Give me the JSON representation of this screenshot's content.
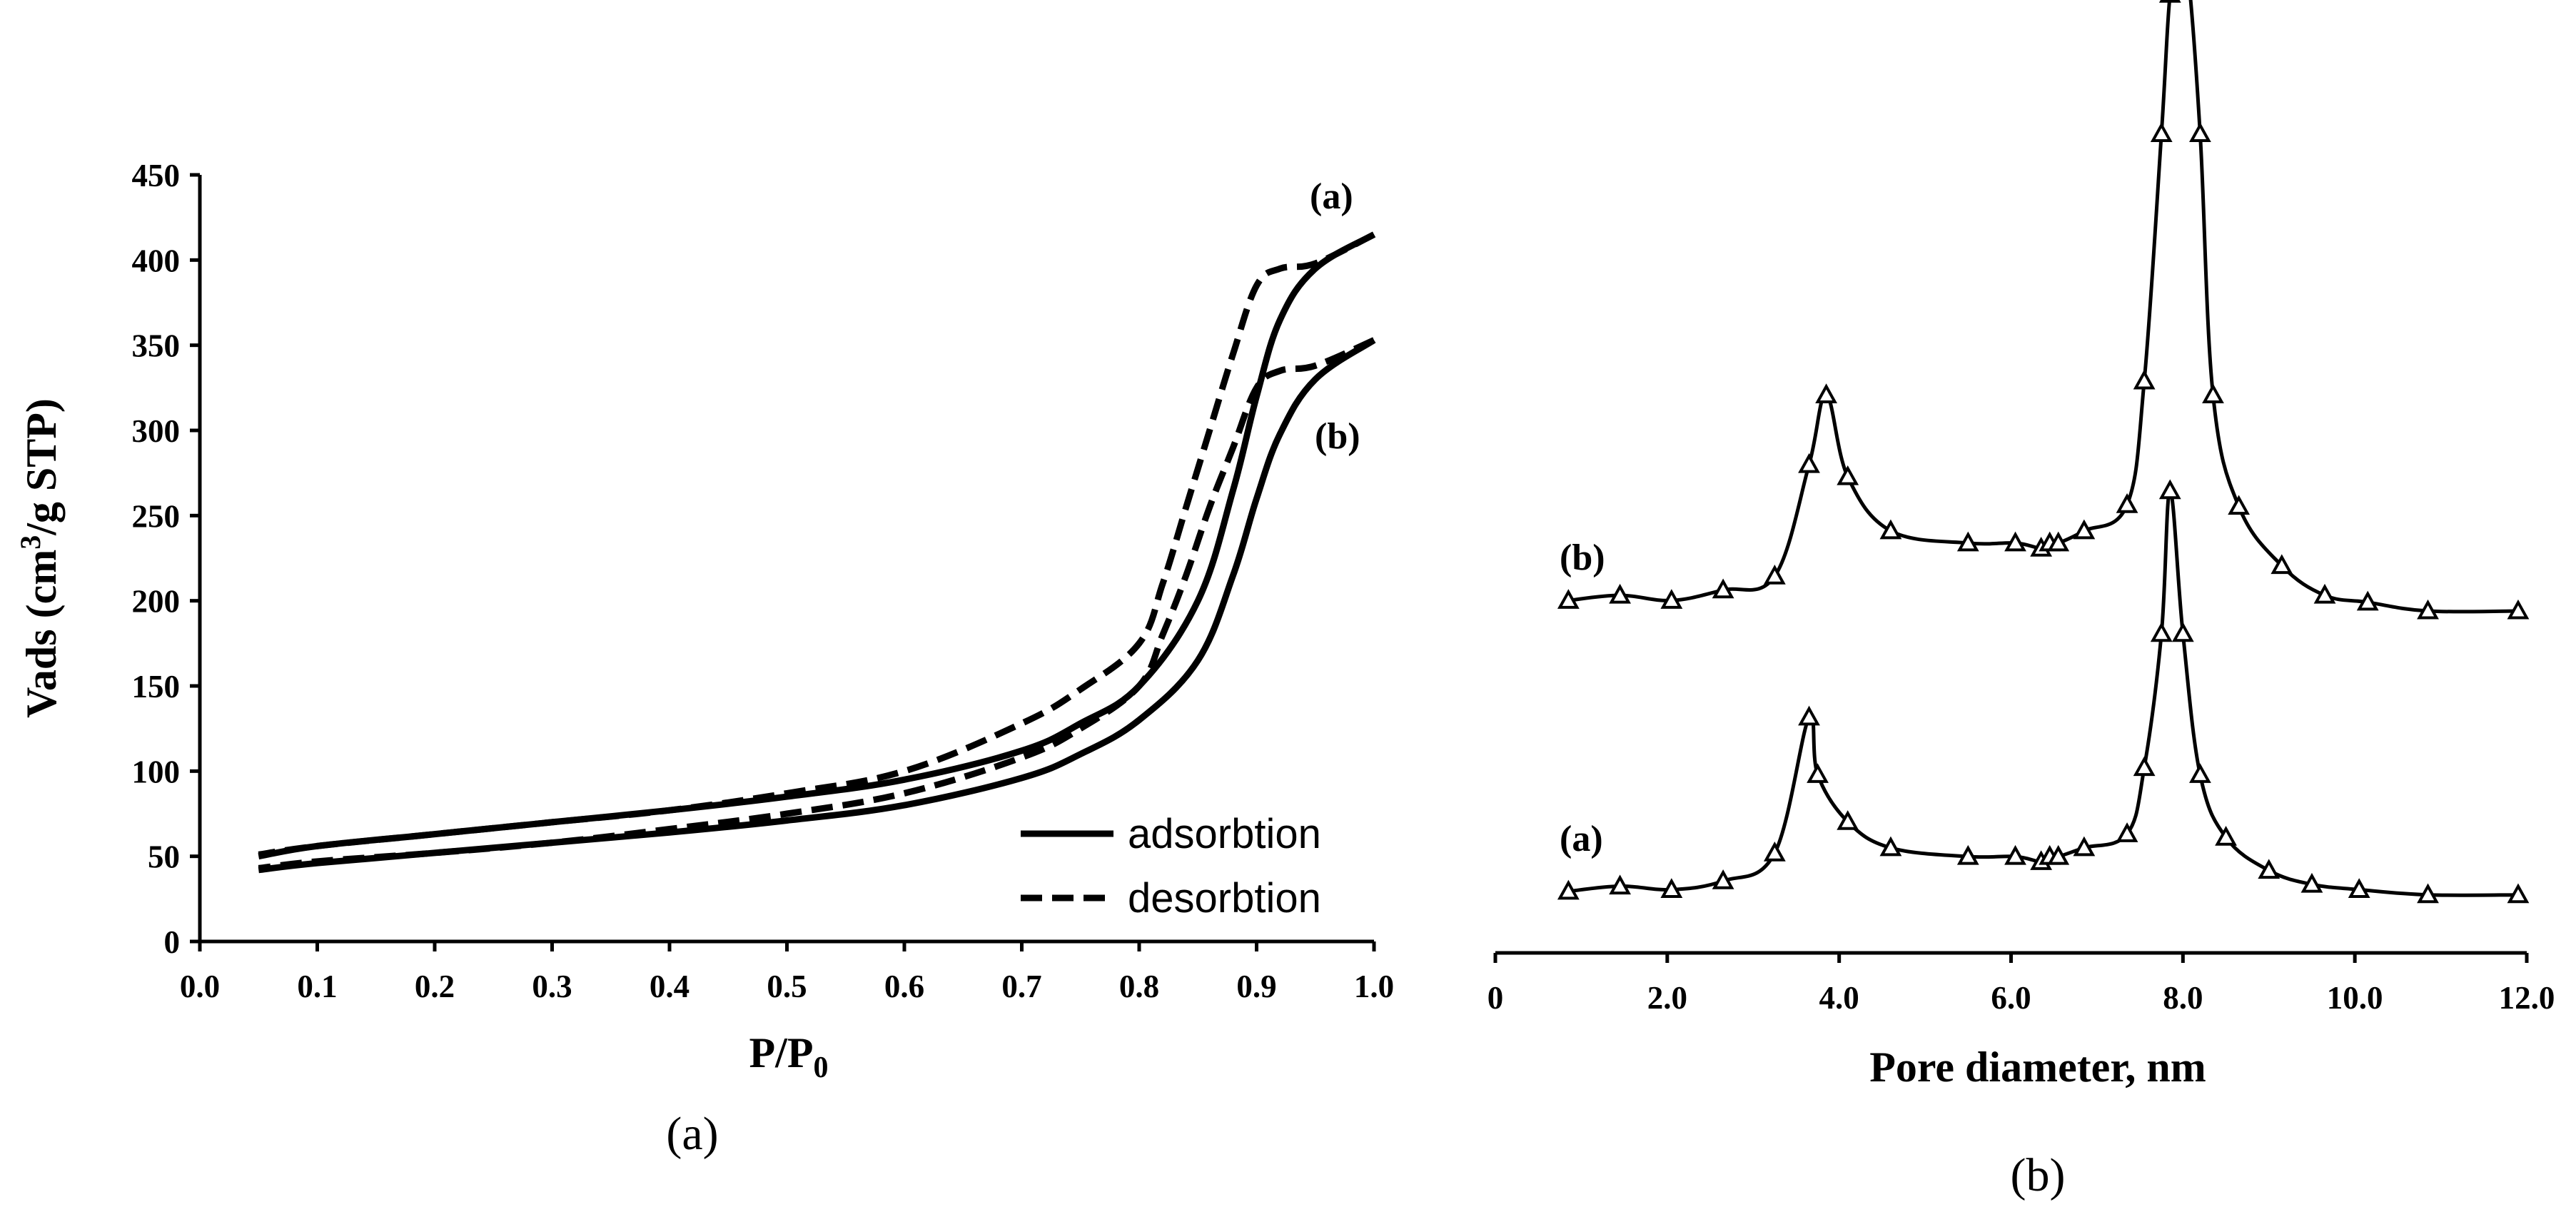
{
  "chart_data": [
    {
      "type": "line",
      "panel_caption": "(a)",
      "xlabel": "P/P",
      "xlabel_sub": "0",
      "ylabel": "Vads (cm",
      "ylabel_sup": "3",
      "ylabel_tail": "/g STP)",
      "xlim": [
        0.0,
        1.0
      ],
      "ylim": [
        0,
        450
      ],
      "xticks": [
        "0.0",
        "0.1",
        "0.2",
        "0.3",
        "0.4",
        "0.5",
        "0.6",
        "0.7",
        "0.8",
        "0.9",
        "1.0"
      ],
      "yticks": [
        "0",
        "50",
        "100",
        "150",
        "200",
        "250",
        "300",
        "350",
        "400",
        "450"
      ],
      "legend": [
        {
          "name": "adsorbtion",
          "style": "solid"
        },
        {
          "name": "desorbtion",
          "style": "dashed"
        }
      ],
      "sample_labels": [
        "(a)",
        "(b)"
      ],
      "series": [
        {
          "name": "(a) adsorbtion",
          "style": "solid",
          "x": [
            0.05,
            0.1,
            0.2,
            0.3,
            0.4,
            0.5,
            0.6,
            0.7,
            0.75,
            0.8,
            0.85,
            0.88,
            0.9,
            0.92,
            0.95,
            1.0
          ],
          "y": [
            50,
            56,
            63,
            70,
            77,
            85,
            95,
            112,
            128,
            150,
            200,
            265,
            320,
            365,
            395,
            415
          ]
        },
        {
          "name": "(a) desorbtion",
          "style": "dashed",
          "x": [
            1.0,
            0.95,
            0.92,
            0.9,
            0.88,
            0.86,
            0.84,
            0.82,
            0.8,
            0.75,
            0.7,
            0.6,
            0.5,
            0.4,
            0.3,
            0.2,
            0.1,
            0.05
          ],
          "y": [
            415,
            398,
            395,
            385,
            345,
            300,
            255,
            210,
            175,
            148,
            128,
            100,
            87,
            77,
            70,
            63,
            56,
            51
          ]
        },
        {
          "name": "(b) adsorbtion",
          "style": "solid",
          "x": [
            0.05,
            0.1,
            0.2,
            0.3,
            0.4,
            0.5,
            0.6,
            0.7,
            0.75,
            0.8,
            0.85,
            0.88,
            0.9,
            0.92,
            0.95,
            1.0
          ],
          "y": [
            42,
            46,
            52,
            58,
            64,
            71,
            80,
            96,
            110,
            130,
            165,
            215,
            260,
            298,
            330,
            353
          ]
        },
        {
          "name": "(b) desorbtion",
          "style": "dashed",
          "x": [
            1.0,
            0.95,
            0.92,
            0.9,
            0.88,
            0.86,
            0.84,
            0.82,
            0.8,
            0.75,
            0.7,
            0.6,
            0.5,
            0.4,
            0.3,
            0.2,
            0.1,
            0.05
          ],
          "y": [
            353,
            338,
            335,
            325,
            290,
            255,
            215,
            180,
            150,
            125,
            108,
            87,
            75,
            66,
            58,
            52,
            47,
            43
          ]
        }
      ]
    },
    {
      "type": "line",
      "panel_caption": "(b)",
      "xlabel": "Pore diameter, nm",
      "xlim": [
        0,
        12
      ],
      "xticks": [
        "0",
        "2.0",
        "4.0",
        "6.0",
        "8.0",
        "10.0",
        "12.0"
      ],
      "y_axis_shown": false,
      "sample_labels": [
        "(b)",
        "(a)"
      ],
      "series": [
        {
          "name": "(a)",
          "marker": "triangle",
          "x": [
            0.85,
            1.45,
            2.05,
            2.65,
            3.25,
            3.65,
            3.75,
            4.1,
            4.6,
            5.5,
            6.05,
            6.35,
            6.45,
            6.55,
            6.85,
            7.35,
            7.55,
            7.75,
            7.85,
            8.0,
            8.2,
            8.5,
            9.0,
            9.5,
            10.05,
            10.85,
            11.9
          ],
          "y": [
            0.03,
            0.033,
            0.031,
            0.036,
            0.052,
            0.13,
            0.097,
            0.07,
            0.055,
            0.05,
            0.05,
            0.047,
            0.05,
            0.05,
            0.055,
            0.063,
            0.101,
            0.178,
            0.26,
            0.178,
            0.097,
            0.061,
            0.042,
            0.034,
            0.031,
            0.028,
            0.028
          ]
        },
        {
          "name": "(b)",
          "marker": "triangle",
          "x": [
            0.85,
            1.45,
            2.05,
            2.65,
            3.25,
            3.65,
            3.85,
            4.1,
            4.6,
            5.5,
            6.05,
            6.35,
            6.45,
            6.55,
            6.85,
            7.35,
            7.55,
            7.75,
            7.85,
            7.95,
            8.05,
            8.2,
            8.35,
            8.65,
            9.15,
            9.65,
            10.15,
            10.85,
            11.9
          ],
          "y": [
            0.197,
            0.2,
            0.197,
            0.203,
            0.211,
            0.275,
            0.315,
            0.268,
            0.237,
            0.23,
            0.23,
            0.227,
            0.23,
            0.23,
            0.237,
            0.252,
            0.323,
            0.465,
            0.545,
            0.56,
            0.56,
            0.465,
            0.315,
            0.251,
            0.217,
            0.2,
            0.196,
            0.191,
            0.191
          ]
        }
      ]
    }
  ]
}
